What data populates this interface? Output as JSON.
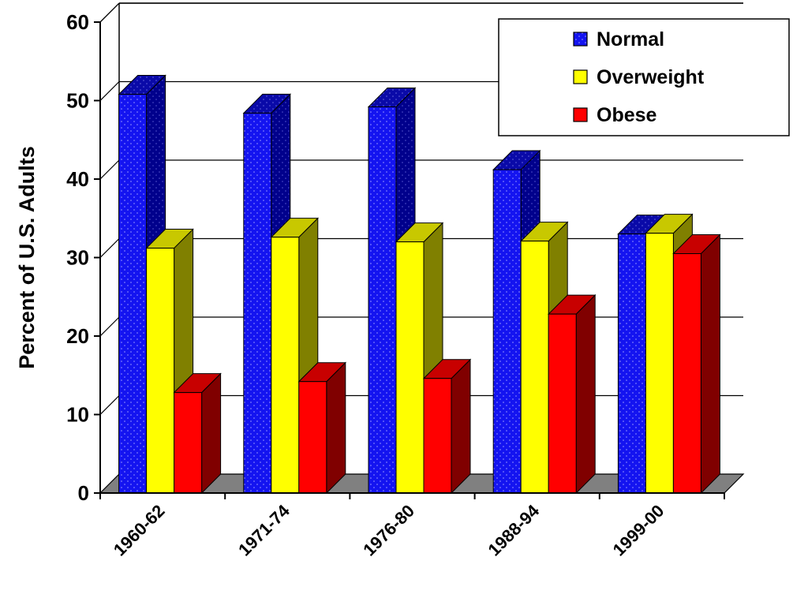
{
  "chart_data": {
    "type": "bar",
    "categories": [
      "1960-62",
      "1971-74",
      "1976-80",
      "1988-94",
      "1999-00"
    ],
    "series": [
      {
        "name": "Normal",
        "values": [
          50.8,
          48.4,
          49.2,
          41.2,
          33.0
        ]
      },
      {
        "name": "Overweight",
        "values": [
          31.2,
          32.6,
          32.0,
          32.1,
          33.1
        ]
      },
      {
        "name": "Obese",
        "values": [
          12.8,
          14.2,
          14.6,
          22.8,
          30.5
        ]
      }
    ],
    "title": "",
    "xlabel": "",
    "ylabel": "Percent of U.S. Adults",
    "ylim": [
      0,
      60
    ],
    "yticks": [
      0,
      10,
      20,
      30,
      40,
      50,
      60
    ],
    "grid": true,
    "three_d": true,
    "legend_position": "top-right"
  },
  "colors": {
    "Normal": {
      "front": "#1414f0",
      "top": "#0a0aa8",
      "side": "#000088"
    },
    "Overweight": {
      "front": "#ffff00",
      "top": "#c8c800",
      "side": "#808000"
    },
    "Obese": {
      "front": "#ff0000",
      "top": "#c80000",
      "side": "#800000"
    },
    "floor": "#808080",
    "grid": "#000000"
  }
}
